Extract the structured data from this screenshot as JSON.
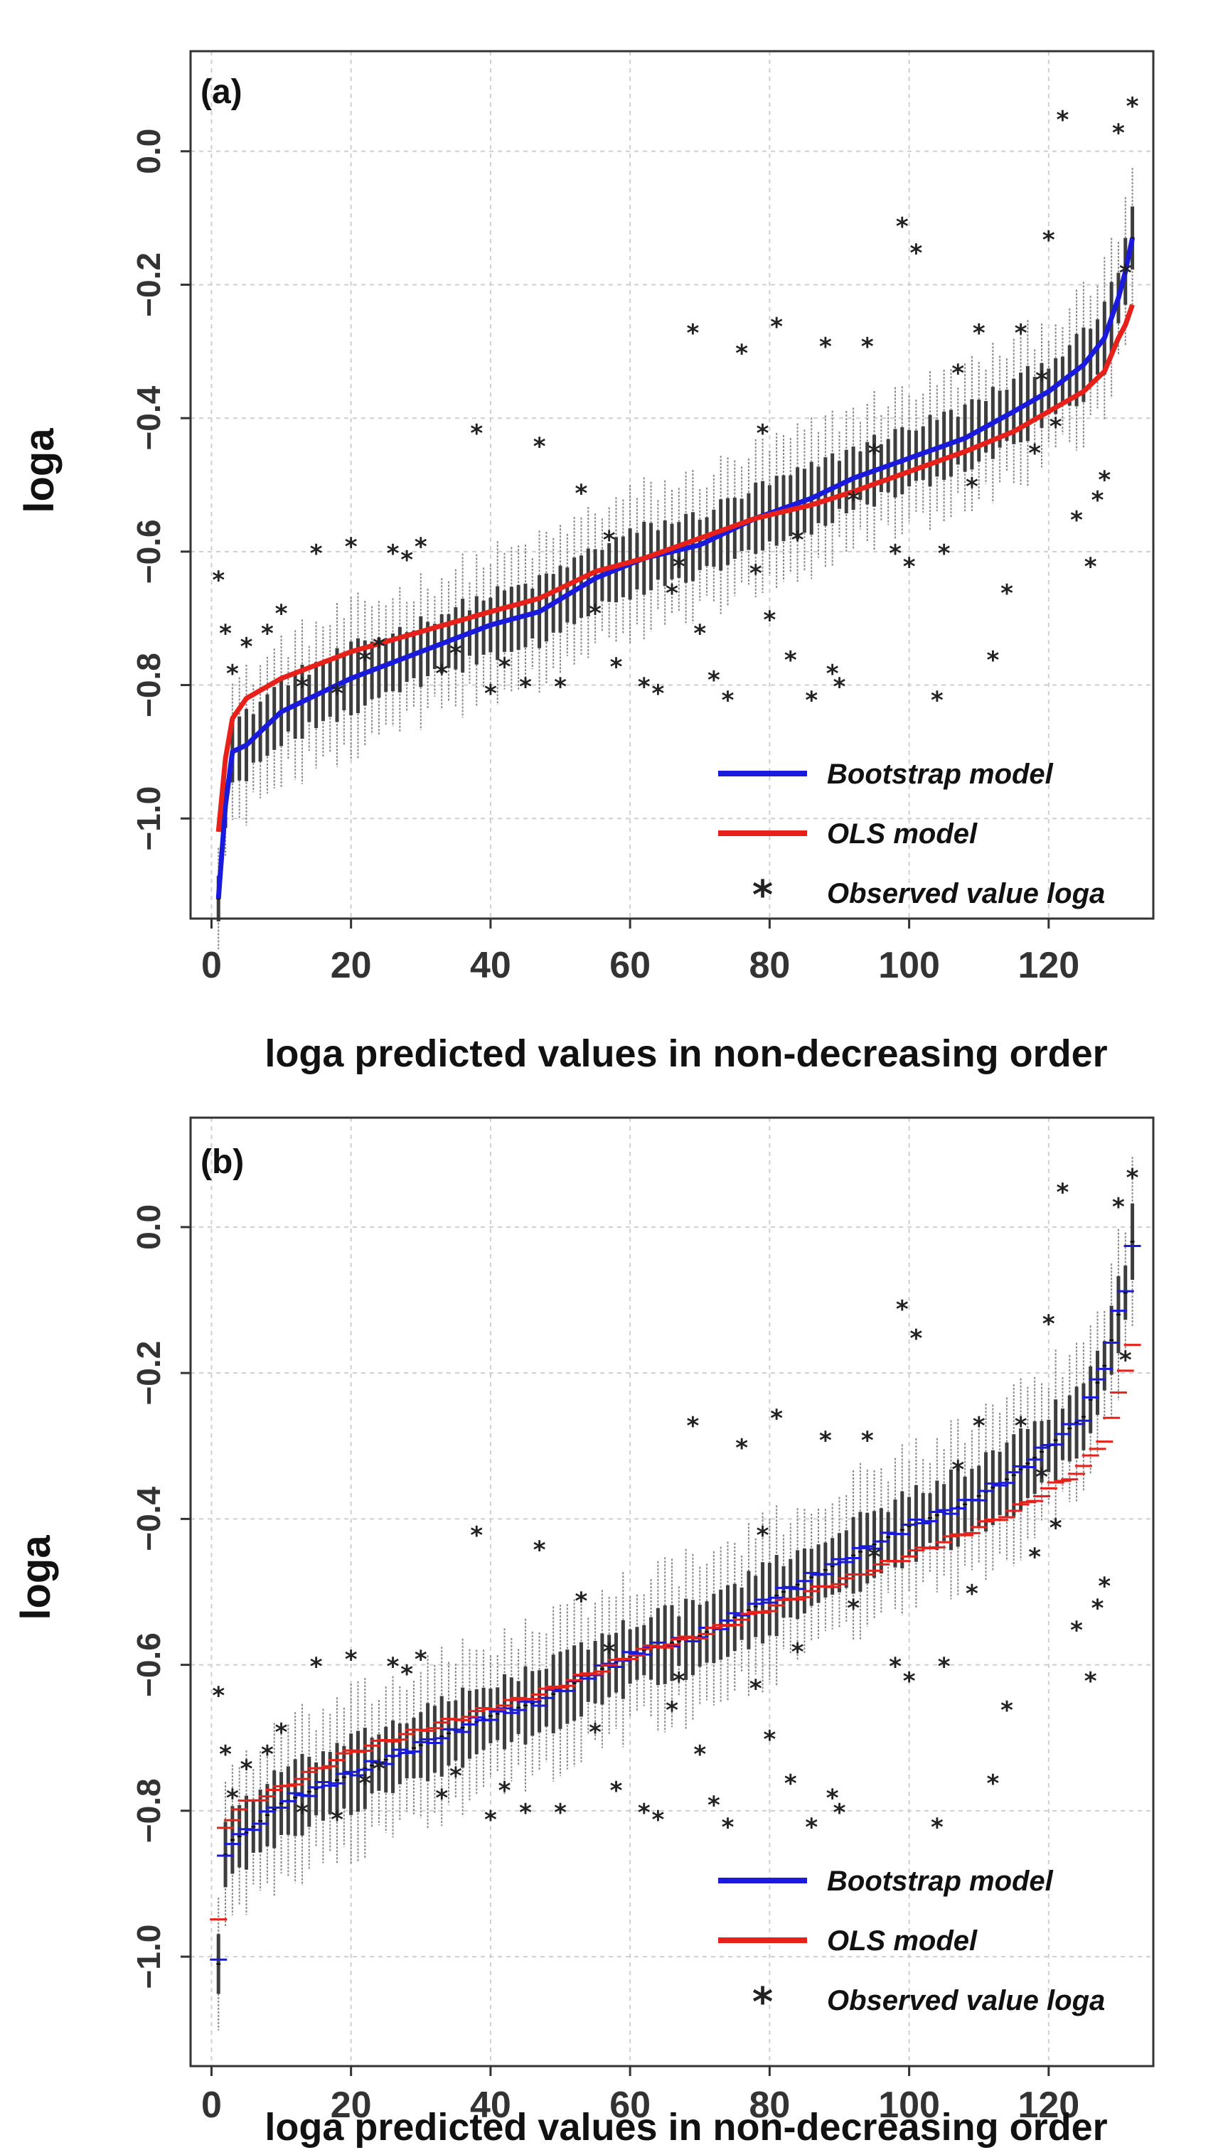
{
  "chart_data": [
    {
      "type": "box-line",
      "panel_label": "(a)",
      "xlabel": "loga predicted values in non-decreasing order",
      "ylabel": "loga",
      "xlim": [
        -3,
        135
      ],
      "ylim": [
        -1.15,
        0.15
      ],
      "x_ticks": [
        0,
        20,
        40,
        60,
        80,
        100,
        120
      ],
      "x_tick_labels": [
        "0",
        "20",
        "40",
        "60",
        "80",
        "100",
        "120"
      ],
      "y_ticks": [
        -1.0,
        -0.8,
        -0.6,
        -0.4,
        -0.2,
        0.0
      ],
      "y_tick_labels": [
        "−1.0",
        "−0.8",
        "−0.6",
        "−0.4",
        "−0.2",
        "0.0"
      ],
      "grid": true,
      "n_points": 132,
      "legend": [
        {
          "label": "Bootstrap model",
          "color": "#1a1adc",
          "marker": "line"
        },
        {
          "label": "OLS model",
          "color": "#e8201a",
          "marker": "line"
        },
        {
          "label": "Observed value loga",
          "color": "#222222",
          "marker": "*"
        }
      ],
      "legend_position": "bottom-right",
      "series": [
        {
          "name": "Bootstrap model",
          "color": "#1a1adc",
          "x": [
            1,
            2,
            3,
            5,
            10,
            20,
            30,
            40,
            47,
            55,
            62,
            70,
            78,
            86,
            92,
            100,
            108,
            115,
            120,
            125,
            128,
            130,
            131,
            132
          ],
          "y": [
            -1.12,
            -0.98,
            -0.9,
            -0.89,
            -0.84,
            -0.79,
            -0.75,
            -0.71,
            -0.69,
            -0.64,
            -0.61,
            -0.59,
            -0.55,
            -0.52,
            -0.49,
            -0.46,
            -0.43,
            -0.39,
            -0.36,
            -0.32,
            -0.28,
            -0.22,
            -0.18,
            -0.13
          ]
        },
        {
          "name": "OLS model",
          "color": "#e8201a",
          "x": [
            1,
            2,
            3,
            5,
            10,
            20,
            30,
            40,
            47,
            55,
            62,
            70,
            78,
            86,
            92,
            100,
            108,
            115,
            120,
            125,
            128,
            130,
            131,
            132
          ],
          "y": [
            -1.02,
            -0.91,
            -0.85,
            -0.82,
            -0.79,
            -0.75,
            -0.72,
            -0.69,
            -0.67,
            -0.63,
            -0.61,
            -0.58,
            -0.55,
            -0.53,
            -0.51,
            -0.48,
            -0.45,
            -0.42,
            -0.39,
            -0.36,
            -0.33,
            -0.28,
            -0.26,
            -0.23
          ]
        }
      ],
      "boxplots": {
        "interval_half_width": 0.1,
        "color": "#444444"
      },
      "observed": {
        "x": [
          1,
          2,
          3,
          5,
          8,
          10,
          13,
          15,
          18,
          20,
          22,
          24,
          26,
          28,
          30,
          33,
          35,
          38,
          40,
          42,
          45,
          47,
          50,
          53,
          55,
          57,
          58,
          62,
          64,
          66,
          67,
          69,
          70,
          72,
          74,
          76,
          78,
          79,
          80,
          81,
          83,
          84,
          86,
          88,
          89,
          90,
          92,
          94,
          95,
          98,
          99,
          100,
          101,
          104,
          105,
          107,
          109,
          110,
          112,
          114,
          116,
          118,
          119,
          120,
          121,
          122,
          124,
          126,
          127,
          128,
          130,
          131,
          132
        ],
        "y": [
          -0.64,
          -0.72,
          -0.78,
          -0.74,
          -0.72,
          -0.69,
          -0.8,
          -0.6,
          -0.81,
          -0.59,
          -0.76,
          -0.74,
          -0.6,
          -0.61,
          -0.59,
          -0.78,
          -0.75,
          -0.42,
          -0.81,
          -0.77,
          -0.8,
          -0.44,
          -0.8,
          -0.51,
          -0.69,
          -0.58,
          -0.77,
          -0.8,
          -0.81,
          -0.66,
          -0.62,
          -0.27,
          -0.72,
          -0.79,
          -0.82,
          -0.3,
          -0.63,
          -0.42,
          -0.7,
          -0.26,
          -0.76,
          -0.58,
          -0.82,
          -0.29,
          -0.78,
          -0.8,
          -0.52,
          -0.29,
          -0.45,
          -0.6,
          -0.11,
          -0.62,
          -0.15,
          -0.82,
          -0.6,
          -0.33,
          -0.5,
          -0.27,
          -0.76,
          -0.66,
          -0.27,
          -0.45,
          -0.34,
          -0.13,
          -0.41,
          0.05,
          -0.55,
          -0.62,
          -0.52,
          -0.49,
          0.03,
          -0.18,
          0.07
        ]
      }
    },
    {
      "type": "box-line",
      "panel_label": "(b)",
      "xlabel": "loga predicted values in non-decreasing order",
      "ylabel": "loga",
      "xlim": [
        -3,
        135
      ],
      "ylim": [
        -1.15,
        0.15
      ],
      "x_ticks": [
        0,
        20,
        40,
        60,
        80,
        100,
        120
      ],
      "x_tick_labels": [
        "0",
        "20",
        "40",
        "60",
        "80",
        "100",
        "120"
      ],
      "y_ticks": [
        -1.0,
        -0.8,
        -0.6,
        -0.4,
        -0.2,
        0.0
      ],
      "y_tick_labels": [
        "−1.0",
        "−0.8",
        "−0.6",
        "−0.4",
        "−0.2",
        "0.0"
      ],
      "grid": true,
      "n_points": 132,
      "legend": [
        {
          "label": "Bootstrap model",
          "color": "#1a1adc",
          "marker": "line"
        },
        {
          "label": "OLS model",
          "color": "#e8201a",
          "marker": "line"
        },
        {
          "label": "Observed value loga",
          "color": "#222222",
          "marker": "*"
        }
      ],
      "legend_position": "bottom-right",
      "series": [
        {
          "name": "Bootstrap model",
          "color": "#1a1adc",
          "style": "segments",
          "x": [
            1,
            2,
            3,
            5,
            10,
            20,
            30,
            40,
            47,
            55,
            62,
            70,
            78,
            86,
            92,
            100,
            108,
            115,
            120,
            125,
            128,
            130,
            131,
            132
          ],
          "y": [
            -1.01,
            -0.86,
            -0.84,
            -0.83,
            -0.79,
            -0.75,
            -0.71,
            -0.67,
            -0.65,
            -0.61,
            -0.58,
            -0.56,
            -0.52,
            -0.48,
            -0.45,
            -0.41,
            -0.38,
            -0.34,
            -0.3,
            -0.26,
            -0.19,
            -0.12,
            -0.09,
            -0.02
          ]
        },
        {
          "name": "OLS model",
          "color": "#e8201a",
          "style": "segments",
          "x": [
            1,
            2,
            3,
            5,
            10,
            20,
            30,
            40,
            47,
            55,
            62,
            70,
            78,
            86,
            92,
            100,
            108,
            115,
            120,
            125,
            128,
            130,
            131,
            132
          ],
          "y": [
            -0.95,
            -0.82,
            -0.81,
            -0.79,
            -0.77,
            -0.72,
            -0.69,
            -0.66,
            -0.64,
            -0.61,
            -0.58,
            -0.56,
            -0.53,
            -0.5,
            -0.48,
            -0.45,
            -0.42,
            -0.39,
            -0.36,
            -0.33,
            -0.29,
            -0.23,
            -0.2,
            -0.16
          ]
        }
      ],
      "boxplots": {
        "interval_half_width": 0.1,
        "color": "#444444"
      },
      "observed": {
        "x": [
          1,
          2,
          3,
          5,
          8,
          10,
          13,
          15,
          18,
          20,
          22,
          24,
          26,
          28,
          30,
          33,
          35,
          38,
          40,
          42,
          45,
          47,
          50,
          53,
          55,
          57,
          58,
          62,
          64,
          66,
          67,
          69,
          70,
          72,
          74,
          76,
          78,
          79,
          80,
          81,
          83,
          84,
          86,
          88,
          89,
          90,
          92,
          94,
          95,
          98,
          99,
          100,
          101,
          104,
          105,
          107,
          109,
          110,
          112,
          114,
          116,
          118,
          119,
          120,
          121,
          122,
          124,
          126,
          127,
          128,
          130,
          131,
          132
        ],
        "y": [
          -0.64,
          -0.72,
          -0.78,
          -0.74,
          -0.72,
          -0.69,
          -0.8,
          -0.6,
          -0.81,
          -0.59,
          -0.76,
          -0.74,
          -0.6,
          -0.61,
          -0.59,
          -0.78,
          -0.75,
          -0.42,
          -0.81,
          -0.77,
          -0.8,
          -0.44,
          -0.8,
          -0.51,
          -0.69,
          -0.58,
          -0.77,
          -0.8,
          -0.81,
          -0.66,
          -0.62,
          -0.27,
          -0.72,
          -0.79,
          -0.82,
          -0.3,
          -0.63,
          -0.42,
          -0.7,
          -0.26,
          -0.76,
          -0.58,
          -0.82,
          -0.29,
          -0.78,
          -0.8,
          -0.52,
          -0.29,
          -0.45,
          -0.6,
          -0.11,
          -0.62,
          -0.15,
          -0.82,
          -0.6,
          -0.33,
          -0.5,
          -0.27,
          -0.76,
          -0.66,
          -0.27,
          -0.45,
          -0.34,
          -0.13,
          -0.41,
          0.05,
          -0.55,
          -0.62,
          -0.52,
          -0.49,
          0.03,
          -0.18,
          0.07
        ]
      }
    }
  ]
}
